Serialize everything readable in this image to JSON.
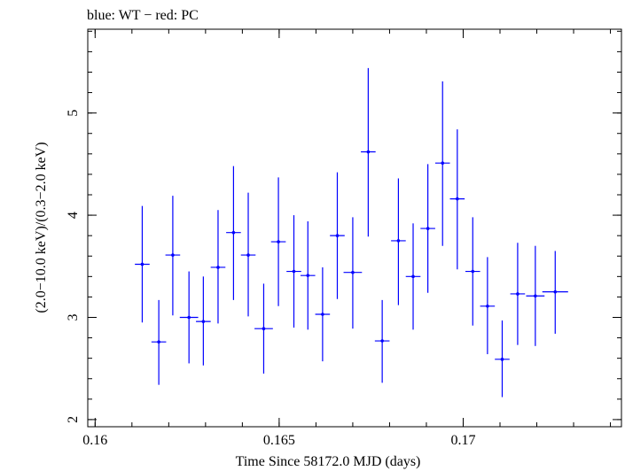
{
  "chart_data": {
    "type": "scatter",
    "title": "blue: WT − red: PC",
    "xlabel": "Time Since 58172.0 MJD (days)",
    "ylabel": "(2.0−10.0 keV)/(0.3−2.0 keV)",
    "xlim": [
      0.1598,
      0.1743
    ],
    "ylim": [
      1.93,
      5.82
    ],
    "x_ticks": [
      {
        "value": 0.16,
        "label": "0.16"
      },
      {
        "value": 0.165,
        "label": "0.165"
      },
      {
        "value": 0.17,
        "label": "0.17"
      }
    ],
    "x_minor_step": 0.001,
    "y_ticks": [
      {
        "value": 2,
        "label": "2"
      },
      {
        "value": 3,
        "label": "3"
      },
      {
        "value": 4,
        "label": "4"
      },
      {
        "value": 5,
        "label": "5"
      }
    ],
    "y_minor_step": 0.2,
    "grid": false,
    "series": [
      {
        "color": "#0000ff",
        "points": [
          {
            "x": 0.16128,
            "y": 3.52,
            "xerr": 0.0002,
            "ylo": 2.95,
            "yhi": 4.09
          },
          {
            "x": 0.16173,
            "y": 2.76,
            "xerr": 0.0002,
            "ylo": 2.34,
            "yhi": 3.17
          },
          {
            "x": 0.16211,
            "y": 3.61,
            "xerr": 0.0002,
            "ylo": 3.02,
            "yhi": 4.19
          },
          {
            "x": 0.16255,
            "y": 3.0,
            "xerr": 0.00025,
            "ylo": 2.55,
            "yhi": 3.45
          },
          {
            "x": 0.16294,
            "y": 2.96,
            "xerr": 0.0002,
            "ylo": 2.53,
            "yhi": 3.4
          },
          {
            "x": 0.16334,
            "y": 3.49,
            "xerr": 0.0002,
            "ylo": 2.94,
            "yhi": 4.05
          },
          {
            "x": 0.16376,
            "y": 3.83,
            "xerr": 0.0002,
            "ylo": 3.17,
            "yhi": 4.48
          },
          {
            "x": 0.16416,
            "y": 3.61,
            "xerr": 0.0002,
            "ylo": 3.01,
            "yhi": 4.22
          },
          {
            "x": 0.16458,
            "y": 2.89,
            "xerr": 0.00025,
            "ylo": 2.45,
            "yhi": 3.33
          },
          {
            "x": 0.16498,
            "y": 3.74,
            "xerr": 0.0002,
            "ylo": 3.11,
            "yhi": 4.37
          },
          {
            "x": 0.1654,
            "y": 3.45,
            "xerr": 0.0002,
            "ylo": 2.9,
            "yhi": 4.0
          },
          {
            "x": 0.16578,
            "y": 3.41,
            "xerr": 0.0002,
            "ylo": 2.88,
            "yhi": 3.94
          },
          {
            "x": 0.16618,
            "y": 3.03,
            "xerr": 0.0002,
            "ylo": 2.57,
            "yhi": 3.49
          },
          {
            "x": 0.16658,
            "y": 3.8,
            "xerr": 0.0002,
            "ylo": 3.18,
            "yhi": 4.42
          },
          {
            "x": 0.167,
            "y": 3.44,
            "xerr": 0.00025,
            "ylo": 2.89,
            "yhi": 3.98
          },
          {
            "x": 0.16742,
            "y": 4.62,
            "xerr": 0.0002,
            "ylo": 3.79,
            "yhi": 5.44
          },
          {
            "x": 0.1678,
            "y": 2.77,
            "xerr": 0.0002,
            "ylo": 2.36,
            "yhi": 3.17
          },
          {
            "x": 0.16824,
            "y": 3.75,
            "xerr": 0.0002,
            "ylo": 3.12,
            "yhi": 4.36
          },
          {
            "x": 0.16864,
            "y": 3.4,
            "xerr": 0.0002,
            "ylo": 2.88,
            "yhi": 3.92
          },
          {
            "x": 0.16904,
            "y": 3.87,
            "xerr": 0.0002,
            "ylo": 3.24,
            "yhi": 4.5
          },
          {
            "x": 0.16944,
            "y": 4.51,
            "xerr": 0.0002,
            "ylo": 3.7,
            "yhi": 5.31
          },
          {
            "x": 0.16984,
            "y": 4.16,
            "xerr": 0.0002,
            "ylo": 3.47,
            "yhi": 4.84
          },
          {
            "x": 0.17026,
            "y": 3.45,
            "xerr": 0.0002,
            "ylo": 2.92,
            "yhi": 3.98
          },
          {
            "x": 0.17066,
            "y": 3.11,
            "xerr": 0.0002,
            "ylo": 2.64,
            "yhi": 3.59
          },
          {
            "x": 0.17106,
            "y": 2.59,
            "xerr": 0.0002,
            "ylo": 2.22,
            "yhi": 2.97
          },
          {
            "x": 0.17148,
            "y": 3.23,
            "xerr": 0.0002,
            "ylo": 2.73,
            "yhi": 3.73
          },
          {
            "x": 0.17196,
            "y": 3.21,
            "xerr": 0.00025,
            "ylo": 2.72,
            "yhi": 3.7
          },
          {
            "x": 0.1725,
            "y": 3.25,
            "xerr": 0.00035,
            "ylo": 2.84,
            "yhi": 3.65
          }
        ]
      }
    ]
  }
}
